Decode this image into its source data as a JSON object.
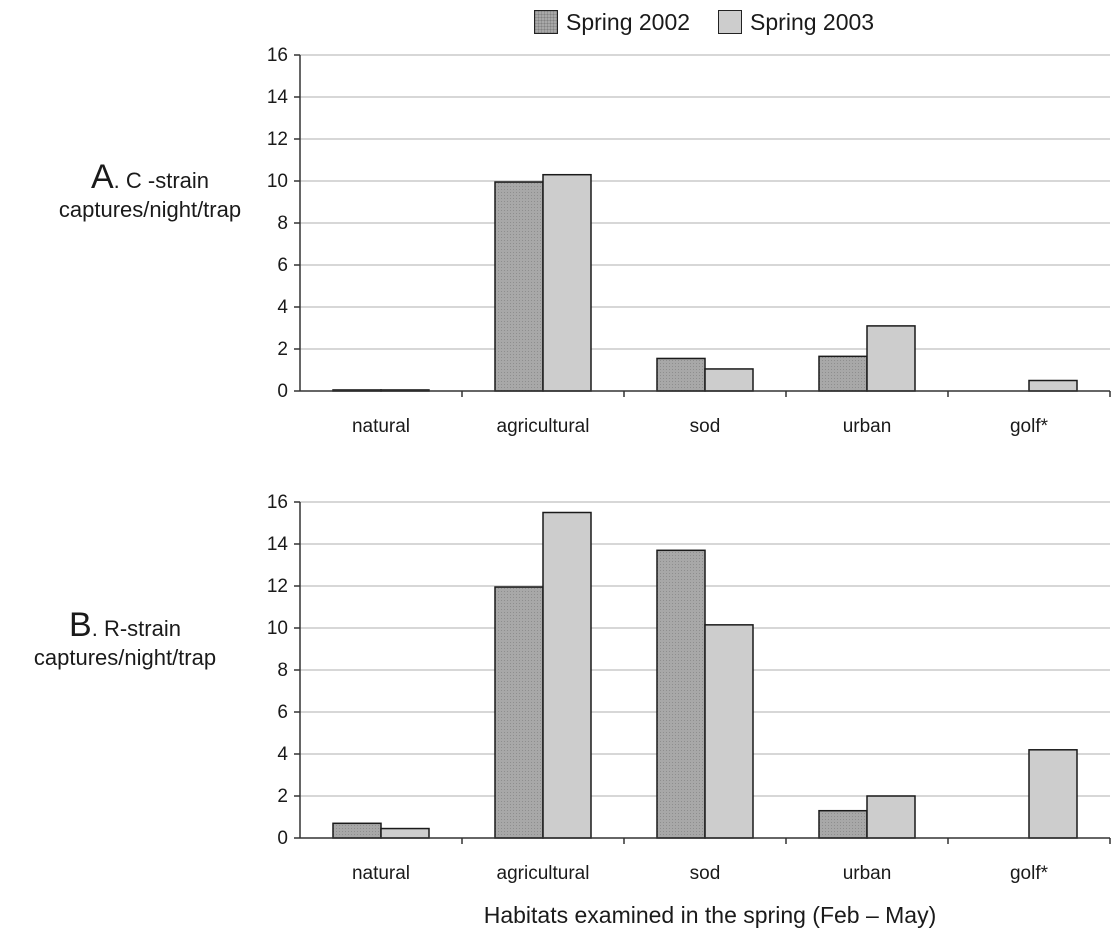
{
  "legend": [
    "Spring 2002",
    "Spring 2003"
  ],
  "colors": {
    "spring_2002": "#a8a8a8",
    "spring_2003": "#cdcdcd",
    "grid": "#bfbfbf",
    "axis": "#333333"
  },
  "xlabel": "Habitats examined in the spring (Feb – May)",
  "panels": [
    {
      "letter": "A",
      "title": ". C -strain",
      "ylabel": "captures/night/trap"
    },
    {
      "letter": "B",
      "title": ". R-strain",
      "ylabel": "captures/night/trap"
    }
  ],
  "chart_data": [
    {
      "type": "bar",
      "categories": [
        "natural",
        "agricultural",
        "sod",
        "urban",
        "golf*"
      ],
      "series": [
        {
          "name": "Spring 2002",
          "values": [
            0.05,
            9.95,
            1.55,
            1.65,
            0
          ]
        },
        {
          "name": "Spring 2003",
          "values": [
            0.05,
            10.3,
            1.05,
            3.1,
            0.5
          ]
        }
      ],
      "ylim": [
        0,
        16
      ],
      "yticks": [
        0,
        2,
        4,
        6,
        8,
        10,
        12,
        14,
        16
      ],
      "grid": true,
      "title": "A. C -strain",
      "ylabel": "captures/night/trap",
      "xlabel": ""
    },
    {
      "type": "bar",
      "categories": [
        "natural",
        "agricultural",
        "sod",
        "urban",
        "golf*"
      ],
      "series": [
        {
          "name": "Spring 2002",
          "values": [
            0.7,
            11.95,
            13.7,
            1.3,
            0
          ]
        },
        {
          "name": "Spring 2003",
          "values": [
            0.45,
            15.5,
            10.15,
            2.0,
            4.2
          ]
        }
      ],
      "ylim": [
        0,
        16
      ],
      "yticks": [
        0,
        2,
        4,
        6,
        8,
        10,
        12,
        14,
        16
      ],
      "grid": true,
      "title": "B. R-strain",
      "ylabel": "captures/night/trap",
      "xlabel": "Habitats examined in the spring (Feb – May)"
    }
  ]
}
